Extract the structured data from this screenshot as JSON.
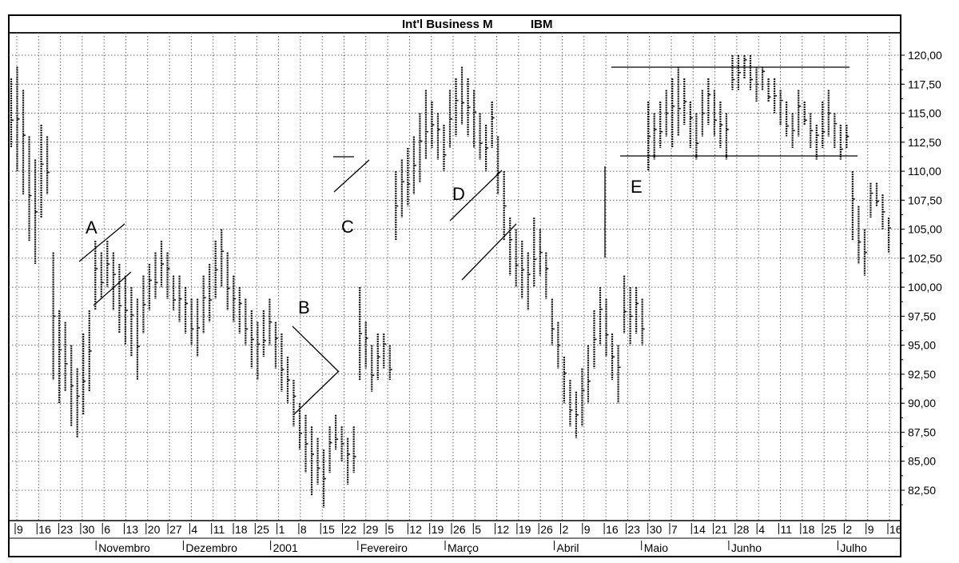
{
  "chart_data": {
    "type": "bar",
    "subtype": "ohlc",
    "title": "Int'l Business M",
    "symbol": "IBM",
    "ylim": [
      80,
      121.5
    ],
    "y_ticks": [
      "120,00",
      "117,50",
      "115,00",
      "112,50",
      "110,00",
      "107,50",
      "105,00",
      "102,50",
      "100,00",
      "97,50",
      "95,00",
      "92,50",
      "90,00",
      "87,50",
      "85,00",
      "82,50"
    ],
    "y_tick_values": [
      120,
      117.5,
      115,
      112.5,
      110,
      107.5,
      105,
      102.5,
      100,
      97.5,
      95,
      92.5,
      90,
      87.5,
      85,
      82.5
    ],
    "grid": true,
    "x_day_labels": [
      "9",
      "16",
      "23",
      "30",
      "6",
      "13",
      "20",
      "27",
      "4",
      "11",
      "18",
      "25",
      "1",
      "8",
      "15",
      "22",
      "29",
      "5",
      "12",
      "19",
      "26",
      "5",
      "12",
      "19",
      "26",
      "2",
      "9",
      "16",
      "23",
      "30",
      "7",
      "14",
      "21",
      "28",
      "4",
      "11",
      "18",
      "25",
      "2",
      "9",
      "16"
    ],
    "month_labels": [
      "Novembro",
      "Dezembro",
      "2001",
      "Fevereiro",
      "Março",
      "Abril",
      "Maio",
      "Junho",
      "Julho"
    ],
    "pattern_labels": [
      "A",
      "B",
      "C",
      "D",
      "E"
    ],
    "daily_ranges": [
      [
        112,
        118
      ],
      [
        110,
        119
      ],
      [
        108,
        117
      ],
      [
        104,
        113
      ],
      [
        102,
        111
      ],
      [
        106,
        114
      ],
      [
        108,
        113
      ],
      [
        92,
        103
      ],
      [
        90,
        98
      ],
      [
        91,
        97
      ],
      [
        88,
        95
      ],
      [
        87,
        93
      ],
      [
        89,
        96
      ],
      [
        91,
        98
      ],
      [
        98,
        104
      ],
      [
        99,
        103
      ],
      [
        100,
        104
      ],
      [
        98,
        103
      ],
      [
        96,
        102
      ],
      [
        95,
        101
      ],
      [
        94,
        100
      ],
      [
        92,
        99
      ],
      [
        96,
        101
      ],
      [
        98,
        102
      ],
      [
        99,
        103
      ],
      [
        100,
        104
      ],
      [
        99,
        103
      ],
      [
        98,
        101
      ],
      [
        97,
        101
      ],
      [
        96,
        100
      ],
      [
        95,
        99
      ],
      [
        94,
        99
      ],
      [
        96,
        101
      ],
      [
        97,
        102
      ],
      [
        99,
        104
      ],
      [
        100,
        105
      ],
      [
        98,
        103
      ],
      [
        97,
        101
      ],
      [
        96,
        100
      ],
      [
        95,
        99
      ],
      [
        93,
        98
      ],
      [
        92,
        97
      ],
      [
        94,
        98
      ],
      [
        95,
        99
      ],
      [
        93,
        97
      ],
      [
        91,
        96
      ],
      [
        90,
        94
      ],
      [
        88,
        92
      ],
      [
        86,
        90
      ],
      [
        84,
        89
      ],
      [
        82,
        88
      ],
      [
        83,
        87
      ],
      [
        81,
        86
      ],
      [
        84,
        88
      ],
      [
        86,
        89
      ],
      [
        85,
        88
      ],
      [
        83,
        87
      ],
      [
        84,
        88
      ],
      [
        92,
        100
      ],
      [
        93,
        97
      ],
      [
        91,
        95
      ],
      [
        92,
        96
      ],
      [
        93,
        96
      ],
      [
        92,
        95
      ],
      [
        104,
        110
      ],
      [
        106,
        111
      ],
      [
        107,
        112
      ],
      [
        108,
        113
      ],
      [
        109,
        115
      ],
      [
        111,
        117
      ],
      [
        112,
        116
      ],
      [
        111,
        115
      ],
      [
        110,
        114
      ],
      [
        112,
        117
      ],
      [
        113,
        118
      ],
      [
        114,
        119
      ],
      [
        113,
        118
      ],
      [
        112,
        117
      ],
      [
        111,
        115
      ],
      [
        110,
        114
      ],
      [
        112,
        116
      ],
      [
        108,
        113
      ],
      [
        104,
        110
      ],
      [
        101,
        106
      ],
      [
        100,
        105
      ],
      [
        99,
        104
      ],
      [
        98,
        103
      ],
      [
        100,
        106
      ],
      [
        101,
        105
      ],
      [
        99,
        103
      ],
      [
        95,
        99
      ],
      [
        93,
        97
      ],
      [
        90,
        94
      ],
      [
        88,
        92
      ],
      [
        87,
        91
      ],
      [
        88,
        93
      ],
      [
        90,
        95
      ],
      [
        93,
        98
      ],
      [
        95,
        100
      ],
      [
        94,
        99
      ],
      [
        92,
        96
      ],
      [
        90,
        95
      ],
      [
        96,
        101
      ],
      [
        95,
        100
      ],
      [
        96,
        100
      ],
      [
        95,
        99
      ],
      [
        110,
        116
      ],
      [
        111,
        115
      ],
      [
        112,
        116
      ],
      [
        113,
        117
      ],
      [
        112,
        118
      ],
      [
        113,
        119
      ],
      [
        114,
        118
      ],
      [
        112,
        116
      ],
      [
        111,
        115
      ],
      [
        113,
        117
      ],
      [
        114,
        118
      ],
      [
        113,
        117
      ],
      [
        112,
        116
      ],
      [
        111,
        115
      ],
      [
        117,
        120
      ],
      [
        117,
        120
      ],
      [
        118,
        120
      ],
      [
        117,
        120
      ],
      [
        116,
        119
      ],
      [
        117,
        119
      ],
      [
        116,
        118
      ],
      [
        115,
        118
      ],
      [
        114,
        117
      ],
      [
        113,
        116
      ],
      [
        112,
        115
      ],
      [
        113,
        117
      ],
      [
        114,
        116
      ],
      [
        112,
        115
      ],
      [
        111,
        114
      ],
      [
        112,
        116
      ],
      [
        113,
        117
      ],
      [
        112,
        115
      ],
      [
        111,
        114
      ],
      [
        112,
        114
      ],
      [
        104,
        110
      ],
      [
        102,
        107
      ],
      [
        101,
        105
      ],
      [
        106,
        109
      ],
      [
        107,
        109
      ],
      [
        105,
        108
      ],
      [
        103,
        106
      ]
    ]
  }
}
